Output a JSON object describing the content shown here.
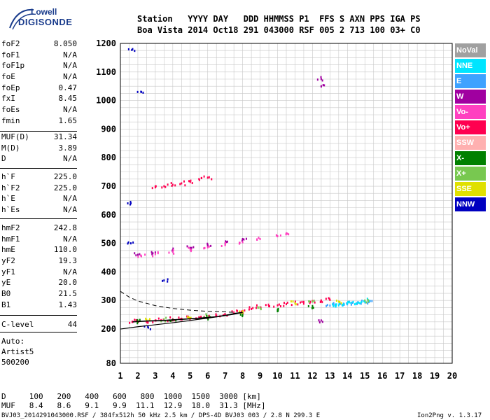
{
  "logo": {
    "line1": "Lowell",
    "line2": "DIGISONDE"
  },
  "header": {
    "row1": "Station   YYYY DAY   DDD HHMMSS P1  FFS S AXN PPS IGA PS",
    "row2": "Boa Vista 2014 Oct18 291 043000 RSF 005 2 713 100 03+ C0"
  },
  "params_group1": [
    {
      "label": "foF2",
      "value": "8.050"
    },
    {
      "label": "foF1",
      "value": "N/A"
    },
    {
      "label": "foF1p",
      "value": "N/A"
    },
    {
      "label": "foE",
      "value": "N/A"
    },
    {
      "label": "foEp",
      "value": "0.47"
    },
    {
      "label": "fxI",
      "value": "8.45"
    },
    {
      "label": "foEs",
      "value": "N/A"
    },
    {
      "label": "fmin",
      "value": "1.65"
    }
  ],
  "params_group2": [
    {
      "label": "MUF(D)",
      "value": "31.34"
    },
    {
      "label": "M(D)",
      "value": "3.89"
    },
    {
      "label": "D",
      "value": "N/A"
    }
  ],
  "params_group3": [
    {
      "label": "h`F",
      "value": "225.0"
    },
    {
      "label": "h`F2",
      "value": "225.0"
    },
    {
      "label": "h`E",
      "value": "N/A"
    },
    {
      "label": "h`Es",
      "value": "N/A"
    }
  ],
  "params_group4": [
    {
      "label": "hmF2",
      "value": "242.8"
    },
    {
      "label": "hmF1",
      "value": "N/A"
    },
    {
      "label": "hmE",
      "value": "110.0"
    },
    {
      "label": "yF2",
      "value": "19.3"
    },
    {
      "label": "yF1",
      "value": "N/A"
    },
    {
      "label": "yE",
      "value": "20.0"
    },
    {
      "label": "B0",
      "value": "21.5"
    },
    {
      "label": "B1",
      "value": "1.43"
    }
  ],
  "params_group5": [
    {
      "label": "C-level",
      "value": "44"
    }
  ],
  "auto": {
    "line1": "Auto:",
    "line2": "Artist5",
    "line3": "500200"
  },
  "legend": [
    {
      "label": "NoVal",
      "color": "#a0a0a0"
    },
    {
      "label": "NNE",
      "color": "#00e5ff"
    },
    {
      "label": "E",
      "color": "#3ea2ff"
    },
    {
      "label": "W",
      "color": "#a000a0"
    },
    {
      "label": "Vo-",
      "color": "#ff40c0"
    },
    {
      "label": "Vo+",
      "color": "#ff0050"
    },
    {
      "label": "SSW",
      "color": "#ffb0b0"
    },
    {
      "label": "X-",
      "color": "#008000"
    },
    {
      "label": "X+",
      "color": "#78c850"
    },
    {
      "label": "SSE",
      "color": "#e0e000"
    },
    {
      "label": "NNW",
      "color": "#0000c0"
    }
  ],
  "footer": {
    "line1": "D     100   200   400   600   800  1000  1500  3000 [km]",
    "line2": "MUF   8.4   8.6   9.1   9.9  11.1  12.9  18.0  31.3 [MHz]",
    "file": "BVJ03_2014291043000.RSF / 384fx512h 50 kHz 2.5 km / DPS-4D BVJ03 003 / 2.8 N 299.3 E",
    "version": "Ion2Png v. 1.3.17"
  },
  "chart_data": {
    "type": "scatter",
    "xlabel": "",
    "ylabel": "",
    "xlim": [
      1,
      20
    ],
    "ylim": [
      80,
      1200
    ],
    "xticks": [
      1,
      2,
      3,
      4,
      5,
      6,
      7,
      8,
      9,
      10,
      11,
      12,
      13,
      14,
      15,
      16,
      17,
      18,
      19,
      20
    ],
    "yticks": [
      80,
      200,
      300,
      400,
      500,
      600,
      700,
      800,
      900,
      1000,
      1100,
      1200
    ],
    "grid": true,
    "series": [
      {
        "name": "Vo+",
        "color": "#ff0050",
        "x": [
          1.7,
          2.0,
          2.5,
          3.0,
          3.5,
          4.0,
          4.5,
          5.0,
          5.5,
          6.0,
          6.5,
          7.0,
          7.5,
          8.0,
          8.5,
          9.0,
          9.5,
          10.0,
          10.5,
          11.0,
          11.5,
          12.0,
          12.5,
          13.0
        ],
        "y": [
          225,
          227,
          228,
          230,
          232,
          234,
          236,
          238,
          241,
          244,
          247,
          252,
          258,
          263,
          270,
          276,
          280,
          283,
          287,
          291,
          295,
          298,
          300,
          302
        ]
      },
      {
        "name": "W",
        "color": "#a000a0",
        "x": [
          2.0,
          3.0,
          4.0,
          5.0,
          6.0,
          7.0,
          8.0,
          12.5,
          12.5,
          12.5
        ],
        "y": [
          460,
          468,
          476,
          484,
          492,
          500,
          515,
          1050,
          1075,
          230
        ]
      },
      {
        "name": "E",
        "color": "#3ea2ff",
        "x": [
          13.0,
          13.3,
          13.6,
          14.0,
          14.3,
          14.6,
          15.0,
          15.3
        ],
        "y": [
          282,
          285,
          288,
          290,
          292,
          294,
          296,
          298
        ]
      },
      {
        "name": "NNE",
        "color": "#00e5ff",
        "x": [
          13.2,
          13.5,
          13.8,
          14.2,
          14.5,
          14.8,
          15.2
        ],
        "y": [
          280,
          283,
          287,
          292,
          289,
          294,
          300
        ]
      },
      {
        "name": "X-",
        "color": "#008000",
        "x": [
          2.0,
          4.0,
          6.0,
          8.0,
          10.0,
          12.0
        ],
        "y": [
          226,
          232,
          240,
          250,
          268,
          280
        ]
      },
      {
        "name": "Vo-",
        "color": "#ff40c0",
        "x": [
          2.2,
          3.0,
          4.0,
          5.0,
          6.0,
          7.0,
          8.0,
          9.0,
          10.0,
          10.5
        ],
        "y": [
          455,
          462,
          470,
          478,
          486,
          494,
          504,
          515,
          525,
          535
        ]
      },
      {
        "name": "NNW",
        "color": "#0000c0",
        "x": [
          1.6,
          1.6,
          1.7,
          2.2,
          2.6,
          3.5
        ],
        "y": [
          640,
          500,
          1180,
          1030,
          205,
          370
        ]
      },
      {
        "name": "SSE",
        "color": "#e0e000",
        "x": [
          2.5,
          5.0,
          8.0,
          11.0,
          13.5
        ],
        "y": [
          232,
          238,
          262,
          290,
          296
        ]
      },
      {
        "name": "X+",
        "color": "#78c850",
        "x": [
          3.5,
          6.0,
          9.0,
          12.0,
          15.0
        ],
        "y": [
          234,
          245,
          275,
          296,
          300
        ]
      },
      {
        "name": "Vo+",
        "color": "#ff0050",
        "x": [
          3.0,
          3.5,
          4.0,
          4.5,
          5.0,
          5.5,
          6.0
        ],
        "y": [
          696,
          700,
          705,
          710,
          715,
          725,
          730
        ]
      }
    ],
    "profile_solid": {
      "x": [
        1.0,
        2.0,
        3.0,
        4.0,
        5.0,
        6.0,
        7.0,
        7.6,
        8.0
      ],
      "y": [
        200,
        208,
        215,
        222,
        230,
        238,
        247,
        253,
        258
      ]
    },
    "profile_trace": {
      "x": [
        1.7,
        2.5,
        3.5,
        4.5,
        5.5,
        6.5,
        7.2,
        7.6,
        8.0
      ],
      "y": [
        225,
        228,
        230,
        234,
        238,
        243,
        250,
        255,
        258
      ]
    },
    "profile_dashed": {
      "x": [
        1.0,
        1.5,
        2.0,
        3.0,
        4.0,
        5.0,
        6.0,
        7.0,
        7.6
      ],
      "y": [
        332,
        312,
        298,
        282,
        272,
        266,
        262,
        260,
        258
      ]
    }
  }
}
